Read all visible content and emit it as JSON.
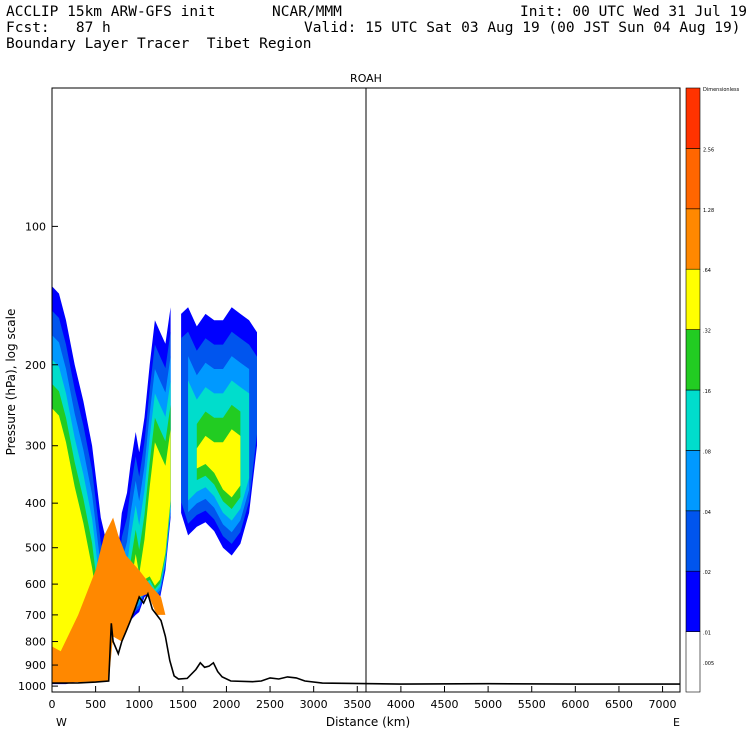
{
  "header": {
    "model": "ACCLIP 15km ARW-GFS init",
    "org": "NCAR/MMM",
    "init": "Init: 00 UTC Wed 31 Jul 19",
    "fcst": "Fcst:   87 h",
    "valid": "Valid: 15 UTC Sat 03 Aug 19 (00 JST Sun 04 Aug 19)",
    "product": "Boundary Layer Tracer  Tibet Region"
  },
  "chart_data": {
    "type": "heatmap",
    "title": "ROAH",
    "xlabel": "Distance (km)",
    "ylabel": "Pressure (hPa), log scale",
    "x_ticks": [
      "0",
      "500",
      "1000",
      "1500",
      "2000",
      "2500",
      "3000",
      "3500",
      "4000",
      "4500",
      "5000",
      "5500",
      "6000",
      "6500",
      "7000"
    ],
    "x_range": [
      0,
      7200
    ],
    "y_ticks": [
      "100",
      "200",
      "300",
      "400",
      "500",
      "600",
      "700",
      "800",
      "900",
      "1000"
    ],
    "y_range": [
      1030,
      50
    ],
    "y_scale": "log",
    "left_end": "W",
    "right_end": "E",
    "marker_line_km": 3600,
    "colorbar": {
      "labels": [
        "Dimensionless",
        "2.56",
        "1.28",
        ".64",
        ".32",
        ".16",
        ".08",
        ".04",
        ".02",
        ".01",
        ".005"
      ],
      "colors": [
        "#ffffff",
        "#0000ff",
        "#0055ee",
        "#0099ff",
        "#00ddcc",
        "#22cc22",
        "#ffff00",
        "#ff8800",
        "#ff6600",
        "#ff3300"
      ]
    },
    "terrain_km_hpa": [
      [
        0,
        985
      ],
      [
        300,
        984
      ],
      [
        500,
        980
      ],
      [
        650,
        975
      ],
      [
        680,
        730
      ],
      [
        700,
        800
      ],
      [
        760,
        850
      ],
      [
        800,
        800
      ],
      [
        850,
        760
      ],
      [
        900,
        720
      ],
      [
        950,
        680
      ],
      [
        1000,
        640
      ],
      [
        1050,
        660
      ],
      [
        1100,
        630
      ],
      [
        1150,
        680
      ],
      [
        1200,
        700
      ],
      [
        1250,
        720
      ],
      [
        1300,
        780
      ],
      [
        1350,
        880
      ],
      [
        1400,
        950
      ],
      [
        1450,
        965
      ],
      [
        1550,
        962
      ],
      [
        1650,
        920
      ],
      [
        1700,
        890
      ],
      [
        1750,
        910
      ],
      [
        1800,
        905
      ],
      [
        1850,
        890
      ],
      [
        1900,
        930
      ],
      [
        1950,
        955
      ],
      [
        2050,
        975
      ],
      [
        2300,
        978
      ],
      [
        2400,
        975
      ],
      [
        2500,
        960
      ],
      [
        2600,
        965
      ],
      [
        2700,
        955
      ],
      [
        2800,
        960
      ],
      [
        2900,
        975
      ],
      [
        3100,
        985
      ],
      [
        4000,
        990
      ],
      [
        5000,
        988
      ],
      [
        6000,
        990
      ],
      [
        7200,
        990
      ]
    ],
    "region_levels": [
      {
        "level": ".01",
        "fill": "#0000ff"
      },
      {
        "level": ".02",
        "fill": "#0055ee"
      },
      {
        "level": ".04",
        "fill": "#0099ff"
      },
      {
        "level": ".08",
        "fill": "#00ddcc"
      },
      {
        "level": ".16",
        "fill": "#22cc22"
      },
      {
        "level": ".32",
        "fill": "#ffff00"
      },
      {
        "level": "1.28",
        "fill": "#ff8800"
      }
    ]
  }
}
